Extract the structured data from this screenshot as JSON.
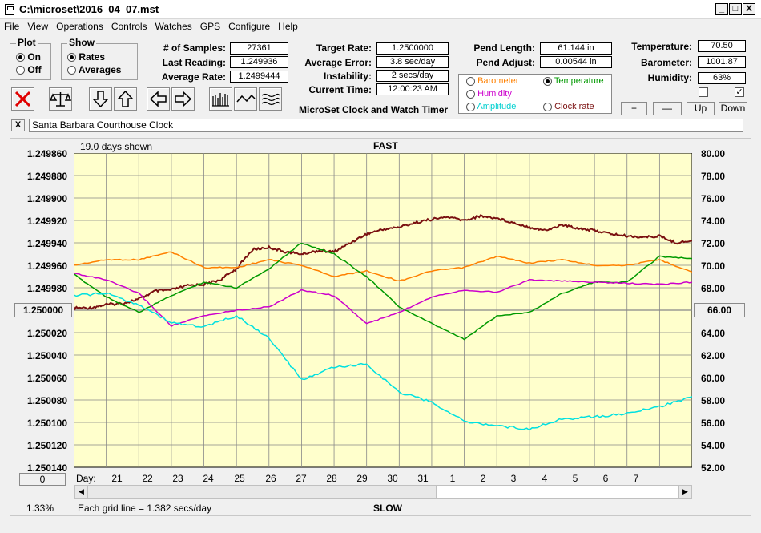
{
  "window": {
    "title": "C:\\microset\\2016_04_07.mst"
  },
  "window_buttons": {
    "minimize": "_",
    "maximize": "□",
    "close": "X"
  },
  "menu": [
    "File",
    "View",
    "Operations",
    "Controls",
    "Watches",
    "GPS",
    "Configure",
    "Help"
  ],
  "plot_group": {
    "title": "Plot",
    "options": [
      "On",
      "Off"
    ],
    "selected": "On"
  },
  "show_group": {
    "title": "Show",
    "options": [
      "Rates",
      "Averages"
    ],
    "selected": "Rates"
  },
  "stats1": {
    "samples_label": "# of Samples:",
    "samples": "27361",
    "last_label": "Last Reading:",
    "last": "1.249936",
    "avg_label": "Average Rate:",
    "avg": "1.2499444"
  },
  "stats2": {
    "target_label": "Target Rate:",
    "target": "1.2500000",
    "error_label": "Average Error:",
    "error": "3.8 sec/day",
    "instability_label": "Instability:",
    "instability": "2 secs/day",
    "time_label": "Current Time:",
    "time": "12:00:23 AM"
  },
  "app_caption": "MicroSet Clock and Watch Timer",
  "pend": {
    "length_label": "Pend Length:",
    "length": "61.144 in",
    "adjust_label": "Pend Adjust:",
    "adjust": "0.00544 in"
  },
  "sensor_select": {
    "items": [
      {
        "label": "Barometer",
        "color": "#ff8000",
        "selected": false
      },
      {
        "label": "Temperature",
        "color": "#009900",
        "selected": true
      },
      {
        "label": "Humidity",
        "color": "#cc00cc",
        "selected": false
      },
      {
        "label": "Clock rate",
        "color": "#7a1010",
        "selected": false
      },
      {
        "label": "Amplitude",
        "color": "#00e0e0",
        "selected": false
      }
    ]
  },
  "env": {
    "temp_label": "Temperature:",
    "temp": "70.50",
    "baro_label": "Barometer:",
    "baro": "1001.87",
    "hum_label": "Humidity:",
    "hum": "63%",
    "check1": false,
    "check2": true
  },
  "env_buttons": {
    "plus": "+",
    "minus": "—",
    "up": "Up",
    "down": "Down"
  },
  "toolbar_icons": [
    "clear-x-icon",
    "balance-scale-icon",
    "arrow-down-icon",
    "arrow-up-icon",
    "arrow-left-icon",
    "arrow-right-icon",
    "bar-rates-icon",
    "wave-icon",
    "multi-wave-icon"
  ],
  "note": {
    "close_label": "X",
    "text": "Santa Barbara Courthouse Clock"
  },
  "plot": {
    "days_shown": "19.0 days shown",
    "fast_label": "FAST",
    "slow_label": "SLOW",
    "grid_note": "Each grid line = 1.382 secs/day",
    "percent": "1.33%",
    "day_label": "Day:",
    "left_button": "1.250000",
    "right_button": "66.00",
    "bottom_button": "0"
  },
  "chart_data": {
    "type": "line",
    "x_unit": "day",
    "x_ticks": [
      "21",
      "22",
      "23",
      "24",
      "25",
      "26",
      "27",
      "28",
      "29",
      "30",
      "31",
      "1",
      "2",
      "3",
      "4",
      "5",
      "6",
      "7"
    ],
    "y_left_ticks": [
      "1.249860",
      "1.249880",
      "1.249900",
      "1.249920",
      "1.249940",
      "1.249960",
      "1.249980",
      "1.250000",
      "1.250020",
      "1.250040",
      "1.250060",
      "1.250080",
      "1.250100",
      "1.250120",
      "1.250140"
    ],
    "y_left_range": [
      1.24986,
      1.25014
    ],
    "y_left_inverted": true,
    "y_right_ticks": [
      "80.00",
      "78.00",
      "76.00",
      "74.00",
      "72.00",
      "70.00",
      "68.00",
      "66.00",
      "64.00",
      "62.00",
      "60.00",
      "58.00",
      "56.00",
      "54.00",
      "52.00"
    ],
    "y_right_range": [
      52,
      80
    ],
    "grid": true,
    "series": [
      {
        "name": "Clock rate",
        "axis": "left",
        "color": "#7a1010",
        "x": [
          0,
          0.5,
          1,
          1.5,
          2,
          2.5,
          3,
          3.5,
          4,
          4.5,
          5,
          5.5,
          6,
          6.5,
          7,
          7.5,
          8,
          8.5,
          9,
          9.5,
          10,
          10.5,
          11,
          11.5,
          12,
          12.5,
          13,
          13.5,
          14,
          14.5,
          15,
          15.5,
          16,
          16.5,
          17,
          17.5,
          18,
          18.5,
          19
        ],
        "y": [
          1.249998,
          1.249998,
          1.249995,
          1.249994,
          1.24999,
          1.249983,
          1.249982,
          1.249978,
          1.249977,
          1.249973,
          1.249963,
          1.249946,
          1.249944,
          1.249948,
          1.24995,
          1.249947,
          1.249948,
          1.24994,
          1.249932,
          1.249928,
          1.249926,
          1.249922,
          1.249919,
          1.249917,
          1.24992,
          1.249916,
          1.249918,
          1.249922,
          1.249926,
          1.249929,
          1.249924,
          1.249927,
          1.249929,
          1.249932,
          1.249934,
          1.249935,
          1.249934,
          1.24994,
          1.249938
        ]
      },
      {
        "name": "Barometer",
        "axis": "right",
        "color": "#ff8000",
        "x": [
          0,
          1,
          2,
          3,
          4,
          5,
          6,
          7,
          8,
          9,
          10,
          11,
          12,
          13,
          14,
          15,
          16,
          17,
          18,
          19
        ],
        "y": [
          70,
          70.5,
          70.5,
          71.2,
          69.8,
          69.8,
          70.5,
          70.0,
          69.0,
          69.5,
          68.6,
          69.5,
          69.8,
          70.8,
          70.2,
          70.5,
          70.0,
          70.0,
          70.5,
          69.4
        ]
      },
      {
        "name": "Temperature",
        "axis": "right",
        "color": "#009900",
        "x": [
          0,
          1,
          2,
          3,
          4,
          5,
          6,
          7,
          8,
          9,
          10,
          11,
          12,
          13,
          14,
          15,
          16,
          17,
          18,
          19
        ],
        "y": [
          69.2,
          67.2,
          65.8,
          67.3,
          68.5,
          68.0,
          69.7,
          72.0,
          71.0,
          69.0,
          66.3,
          64.8,
          63.4,
          65.5,
          65.8,
          67.5,
          68.5,
          68.5,
          70.8,
          70.6
        ]
      },
      {
        "name": "Humidity",
        "axis": "right",
        "color": "#cc00cc",
        "x": [
          0,
          1,
          2,
          3,
          4,
          5,
          6,
          7,
          8,
          9,
          10,
          11,
          12,
          13,
          14,
          15,
          16,
          17,
          18,
          19
        ],
        "y": [
          69.3,
          68.7,
          67.5,
          64.6,
          65.5,
          66.0,
          66.3,
          67.8,
          67.3,
          64.8,
          65.8,
          67.2,
          67.8,
          67.6,
          68.7,
          68.6,
          68.5,
          68.4,
          68.3,
          68.5
        ]
      },
      {
        "name": "Amplitude",
        "axis": "right",
        "color": "#00e0e0",
        "x": [
          0,
          1,
          2,
          3,
          4,
          5,
          6,
          7,
          8,
          9,
          10,
          11,
          12,
          13,
          14,
          15,
          16,
          17,
          18,
          19
        ],
        "y": [
          67.3,
          67.5,
          66.5,
          64.9,
          64.5,
          65.5,
          63.5,
          59.8,
          60.9,
          61.2,
          58.7,
          57.8,
          56.1,
          55.7,
          55.4,
          56.3,
          56.5,
          56.8,
          57.4,
          58.3
        ]
      }
    ]
  }
}
